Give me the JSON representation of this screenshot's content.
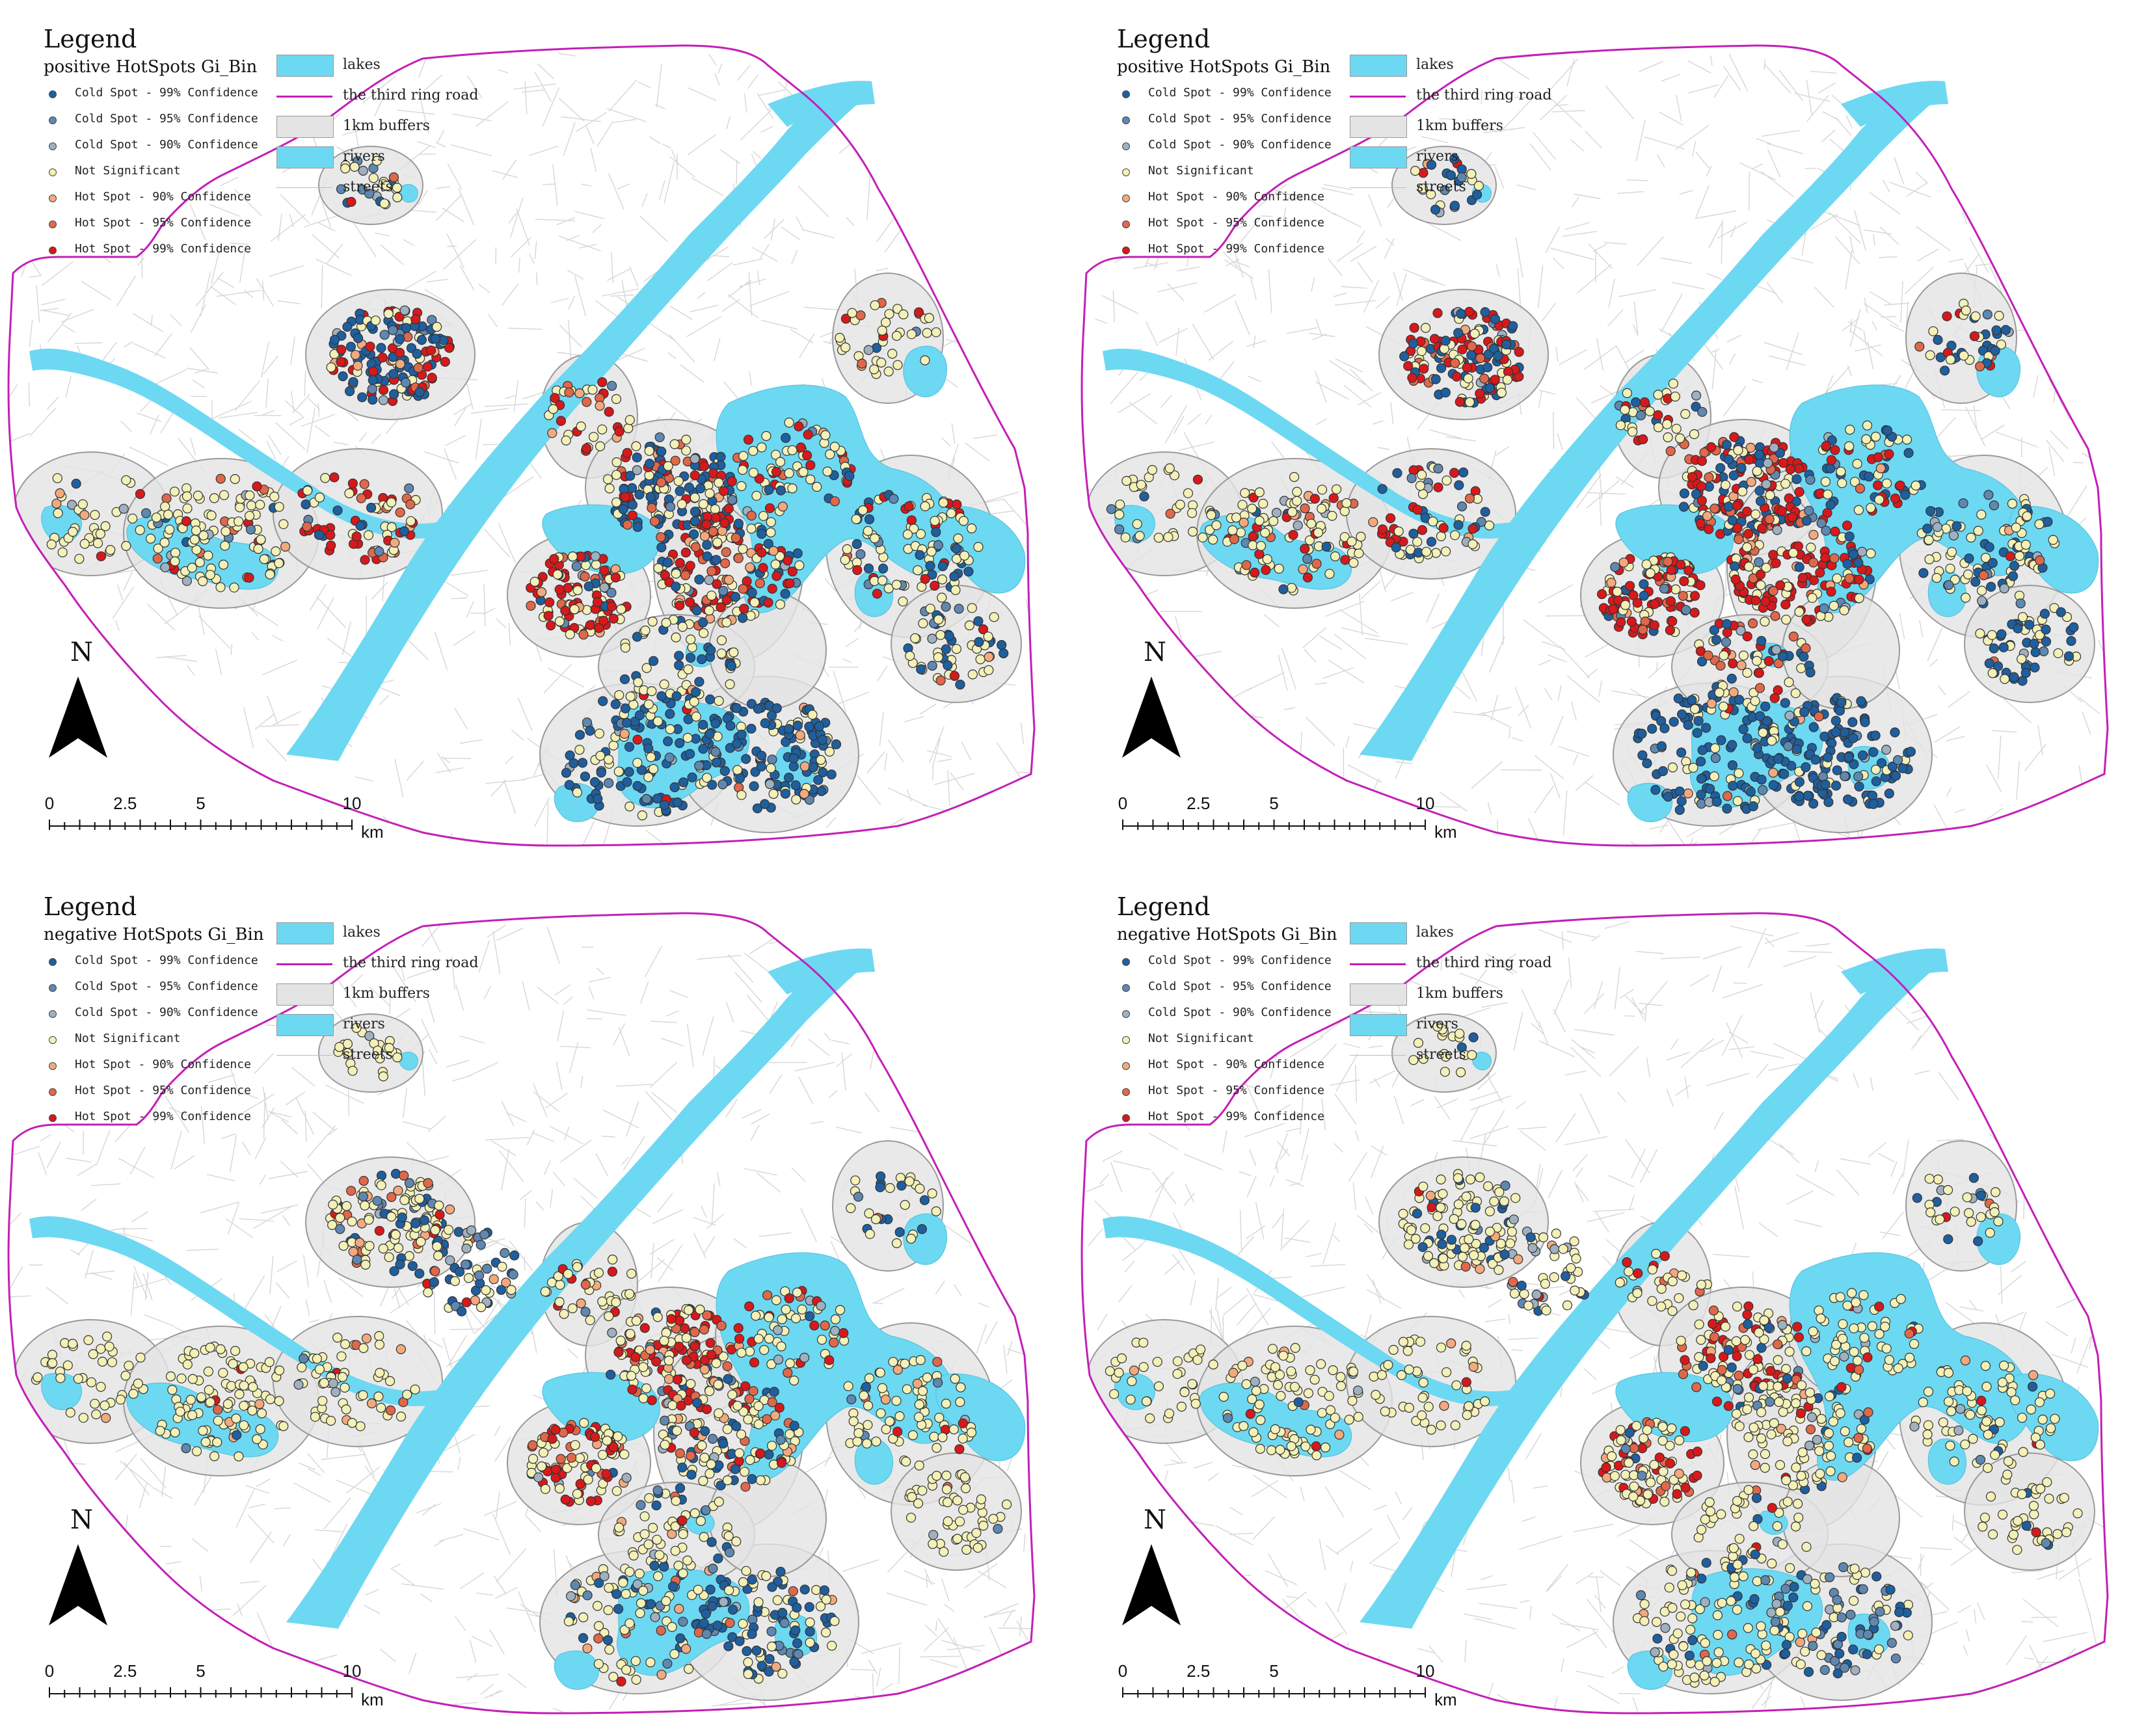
{
  "legend": {
    "title": "Legend",
    "panels": [
      {
        "subtitle": "positive HotSpots Gi_Bin"
      },
      {
        "subtitle": "positive HotSpots Gi_Bin"
      },
      {
        "subtitle": "negative HotSpots Gi_Bin"
      },
      {
        "subtitle": "negative HotSpots Gi_Bin"
      }
    ],
    "categories": [
      {
        "label": "Cold Spot - 99% Confidence",
        "color": "#1f5f9e"
      },
      {
        "label": "Cold Spot - 95% Confidence",
        "color": "#5f88b0"
      },
      {
        "label": "Cold Spot - 90% Confidence",
        "color": "#9fb0c0"
      },
      {
        "label": "Not Significant",
        "color": "#f3f0b8"
      },
      {
        "label": "Hot Spot - 90% Confidence",
        "color": "#f2a97e"
      },
      {
        "label": "Hot Spot - 95% Confidence",
        "color": "#e0684a"
      },
      {
        "label": "Hot Spot - 99% Confidence",
        "color": "#d7191c"
      }
    ],
    "reference": [
      {
        "label": "lakes",
        "kind": "fill",
        "color": "#6dd8f2"
      },
      {
        "label": "the third ring road",
        "kind": "line",
        "color": "#c31fb7"
      },
      {
        "label": "1km buffers",
        "kind": "fill",
        "color": "#e4e4e4"
      },
      {
        "label": "rivers",
        "kind": "fill",
        "color": "#6dd8f2"
      },
      {
        "label": "streets",
        "kind": "thin",
        "color": "#bdbdbd"
      }
    ]
  },
  "north_arrow": {
    "label": "N"
  },
  "scale_bar": {
    "ticks": [
      "0",
      "2.5",
      "5",
      "10"
    ],
    "unit": "km"
  },
  "colors": {
    "water": "#6dd8f2",
    "ring_road": "#c31fb7",
    "buffer": "#e4e4e4",
    "street": "#c8c8c8"
  }
}
